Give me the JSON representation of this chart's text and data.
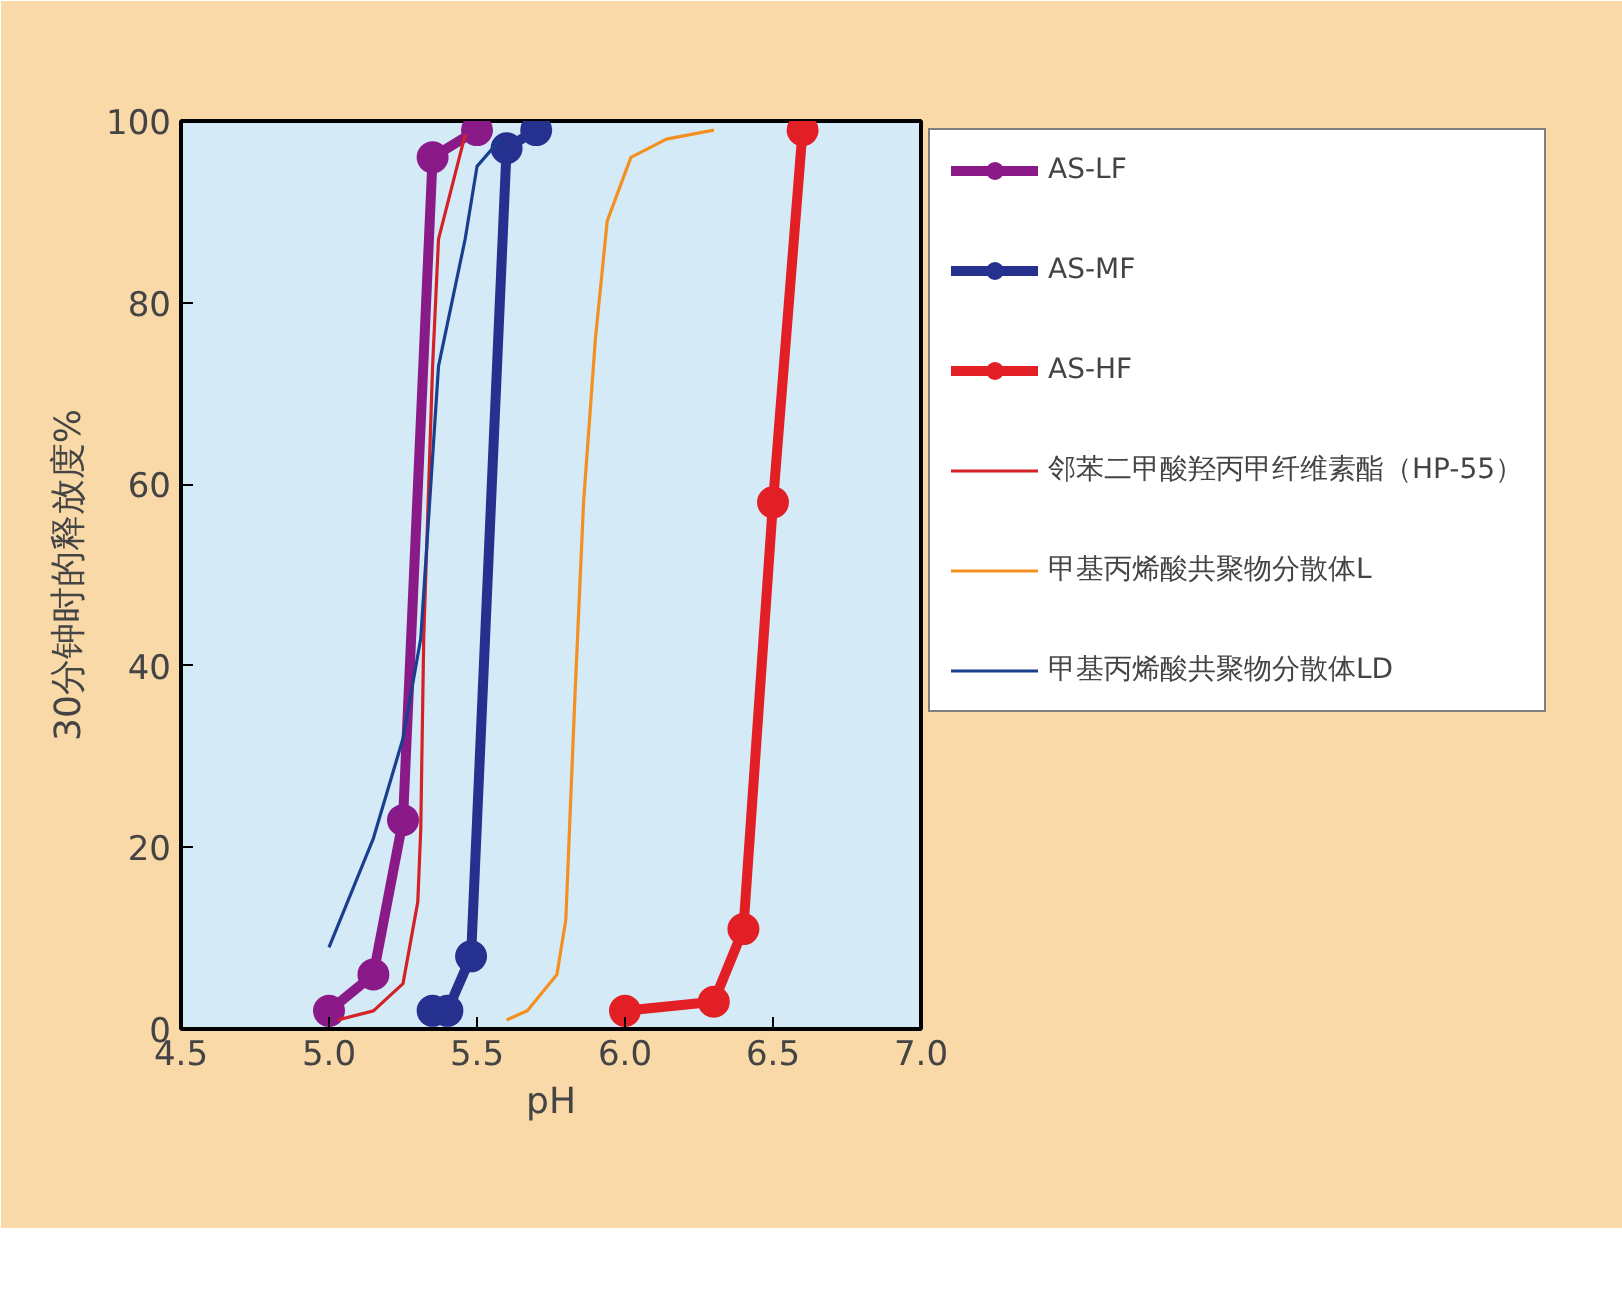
{
  "chart_data": {
    "type": "line",
    "xlabel": "pH",
    "ylabel": "30分钟时的释放度%",
    "xlim": [
      4.5,
      7.0
    ],
    "xticks": [
      {
        "value": 4.5,
        "label": "4.5"
      },
      {
        "value": 5.0,
        "label": "5.0"
      },
      {
        "value": 5.5,
        "label": "5.5"
      },
      {
        "value": 6.0,
        "label": "6.0"
      },
      {
        "value": 6.5,
        "label": "6.5"
      },
      {
        "value": 7.0,
        "label": "7.0"
      }
    ],
    "ylim": [
      0,
      100
    ],
    "yticks": [
      0,
      20,
      40,
      60,
      80,
      100
    ],
    "grid": false,
    "legend": "top right",
    "series": [
      {
        "name": "AS-LF",
        "color": "#8b1a89",
        "marker": "circle",
        "x": [
          5.0,
          5.15,
          5.25,
          5.35,
          5.5
        ],
        "values": [
          2,
          6,
          23,
          96,
          99
        ]
      },
      {
        "name": "AS-MF",
        "color": "#26318f",
        "marker": "circle",
        "x": [
          5.35,
          5.4,
          5.48,
          5.6,
          5.7
        ],
        "values": [
          2,
          2,
          8,
          97,
          99
        ]
      },
      {
        "name": "AS-HF",
        "color": "#e31f26",
        "marker": "circle",
        "x": [
          6.0,
          6.3,
          6.4,
          6.5,
          6.6
        ],
        "values": [
          2,
          3,
          11,
          58,
          99
        ]
      },
      {
        "name": "邻苯二甲酸羟丙甲纤维素酯（HP-55）",
        "color": "#d42027",
        "marker": "none",
        "x": [
          5.03,
          5.15,
          5.25,
          5.3,
          5.31,
          5.32,
          5.35,
          5.37,
          5.46
        ],
        "values": [
          1,
          2,
          5,
          14,
          22,
          43,
          73,
          87,
          98.5
        ]
      },
      {
        "name": "甲基丙烯酸共聚物分散体L",
        "color": "#f39020",
        "marker": "none",
        "x": [
          5.6,
          5.67,
          5.77,
          5.8,
          5.83,
          5.86,
          5.9,
          5.94,
          6.02,
          6.14,
          6.3
        ],
        "values": [
          1,
          2,
          6,
          12,
          36,
          58,
          76,
          89,
          96,
          98,
          99
        ]
      },
      {
        "name": "甲基丙烯酸共聚物分散体LD",
        "color": "#1a3f8f",
        "marker": "none",
        "x": [
          5.0,
          5.15,
          5.25,
          5.31,
          5.34,
          5.37,
          5.46,
          5.5,
          5.58
        ],
        "values": [
          9,
          21,
          32,
          43,
          58,
          73,
          87,
          95,
          98
        ]
      }
    ]
  }
}
